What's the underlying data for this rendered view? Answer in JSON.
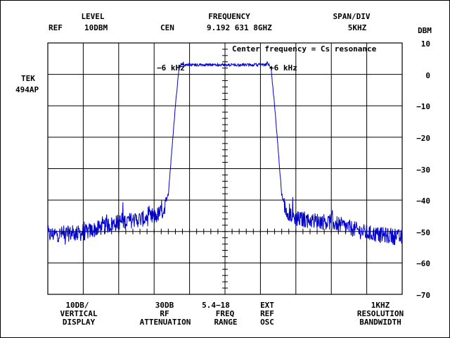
{
  "header": {
    "level_label": "LEVEL",
    "ref_label": "REF",
    "ref_value": "10DBM",
    "frequency_label": "FREQUENCY",
    "cen_label": "CEN",
    "cen_value": "9.192 631 8GHZ",
    "span_label": "SPAN/DIV",
    "span_value": "5KHZ"
  },
  "instrument": {
    "brand": "TEK",
    "model": "494AP"
  },
  "axis": {
    "unit": "DBM",
    "ticks": [
      "10",
      "0",
      "−10",
      "−20",
      "−30",
      "−40",
      "−50",
      "−60",
      "−70"
    ]
  },
  "annotations": {
    "center_note": "Center frequency = Cs resonance",
    "minus6": "−6 kHz",
    "plus6": "+6 kHz"
  },
  "footer": {
    "vertical_display": [
      "10DB/",
      "VERTICAL",
      "DISPLAY"
    ],
    "rf_attenuation": [
      "30DB",
      "RF",
      "ATTENUATION"
    ],
    "freq_range": [
      "5.4−18",
      "FREQ",
      "RANGE"
    ],
    "ref_osc": [
      "EXT",
      "REF",
      "OSC"
    ],
    "resolution_bandwidth": [
      "1KHZ",
      "RESOLUTION",
      "BANDWIDTH"
    ]
  },
  "colors": {
    "trace": "#0000cc",
    "graticule": "#000000"
  },
  "chart_data": {
    "type": "line",
    "x_unit": "kHz from center",
    "xlim": [
      -25,
      25
    ],
    "ylim": [
      -70,
      10
    ],
    "x": [
      -25,
      -20,
      -15,
      -10,
      -8.5,
      -8,
      -7.5,
      -7,
      -6.5,
      -6,
      -5,
      0,
      5,
      6,
      6.5,
      7,
      7.5,
      8,
      8.5,
      10,
      15,
      20,
      25
    ],
    "y": [
      -51,
      -50.5,
      -47,
      -45.5,
      -43,
      -38,
      -24,
      -10,
      2,
      3.5,
      3.5,
      3.5,
      3.5,
      3.5,
      2,
      -10,
      -24,
      -38,
      -43,
      -46,
      -47,
      -50.5,
      -52
    ]
  }
}
